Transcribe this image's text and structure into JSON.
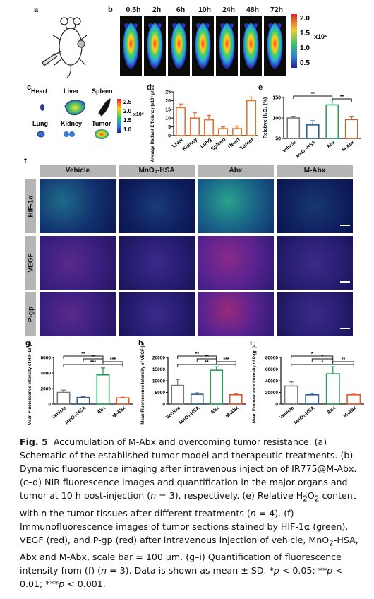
{
  "panels": {
    "a": "a",
    "b": "b",
    "c": "c",
    "d": "d",
    "e": "e",
    "f": "f",
    "g": "g",
    "h": "h",
    "i": "i"
  },
  "panel_b": {
    "timepoints": [
      "0.5h",
      "2h",
      "6h",
      "10h",
      "24h",
      "48h",
      "72h"
    ],
    "colorbar": {
      "ticks": [
        "2.0",
        "1.5",
        "1.0",
        "0.5"
      ],
      "unit": "x10⁹"
    }
  },
  "panel_c": {
    "organs": [
      "Heart",
      "Liver",
      "Spleen",
      "Lung",
      "Kidney",
      "Tumor"
    ],
    "colorbar": {
      "ticks": [
        "2.5",
        "2.0",
        "1.5",
        "1.0"
      ],
      "unit": "x10⁹"
    }
  },
  "panel_f": {
    "columns": [
      "Vehicle",
      "MnO₂-HSA",
      "Abx",
      "M-Abx"
    ],
    "rows": [
      "HIF-1α",
      "VEGF",
      "P-gp"
    ]
  },
  "colors": {
    "vehicle": "#777777",
    "mno2": "#2f5f8a",
    "abx": "#2a9d5c",
    "mabx": "#d95b2a",
    "organ_bar": "#e8742c"
  },
  "chart_data": [
    {
      "id": "d",
      "type": "bar",
      "ylabel": "Average Radiant Efficiency (x10⁹ p/s/cm²/sr/μW)",
      "categories": [
        "Liver",
        "Kidney",
        "Lung",
        "Spleen",
        "Heart",
        "Tumor"
      ],
      "values": [
        16,
        10,
        9,
        4,
        4,
        20
      ],
      "errors": [
        2,
        3,
        2.5,
        1,
        1.5,
        2
      ],
      "ylim": [
        0,
        25
      ],
      "yticks": [
        "0",
        "5",
        "10",
        "15",
        "20",
        "25"
      ]
    },
    {
      "id": "e",
      "type": "bar",
      "ylabel": "Relative H₂O₂ (%)",
      "categories": [
        "Vehicle",
        "MnO₂-HSA",
        "Abx",
        "M-Abx"
      ],
      "values": [
        100,
        83,
        132,
        96
      ],
      "errors": [
        4,
        10,
        12,
        8
      ],
      "ylim": [
        50,
        150
      ],
      "yticks": [
        "50",
        "100",
        "150"
      ],
      "sig": [
        {
          "from": 0,
          "to": 2,
          "label": "**"
        },
        {
          "from": 2,
          "to": 3,
          "label": "**"
        }
      ]
    },
    {
      "id": "g",
      "type": "bar",
      "ylabel": "Mean Fluorescence Intensity of HIF-1α (a.u.)",
      "categories": [
        "Vehicle",
        "MnO₂-HSA",
        "Abx",
        "M-Abx"
      ],
      "values": [
        1500,
        850,
        3750,
        800
      ],
      "errors": [
        300,
        80,
        900,
        70
      ],
      "ylim": [
        0,
        6000
      ],
      "yticks": [
        "0",
        "2000",
        "4000",
        "6000"
      ],
      "sig": [
        {
          "from": 0,
          "to": 2,
          "label": "**"
        },
        {
          "from": 1,
          "to": 2,
          "label": "**"
        },
        {
          "from": 2,
          "to": 3,
          "label": "***"
        },
        {
          "from": 0,
          "to": 3,
          "label": "***"
        }
      ]
    },
    {
      "id": "h",
      "type": "bar",
      "ylabel": "Mean Fluorescence Intensity of VEGF (a.u.)",
      "categories": [
        "Vehicle",
        "MnO₂-HSA",
        "Abx",
        "M-Abx"
      ],
      "values": [
        8000,
        4200,
        14500,
        4000
      ],
      "errors": [
        2500,
        600,
        1500,
        300
      ],
      "ylim": [
        0,
        20000
      ],
      "yticks": [
        "0",
        "5000",
        "10000",
        "15000",
        "20000"
      ],
      "sig": [
        {
          "from": 0,
          "to": 2,
          "label": "**"
        },
        {
          "from": 1,
          "to": 2,
          "label": "**"
        },
        {
          "from": 2,
          "to": 3,
          "label": "***"
        },
        {
          "from": 0,
          "to": 3,
          "label": "**"
        }
      ]
    },
    {
      "id": "i",
      "type": "bar",
      "ylabel": "Mean Fluorescence Intensity of P-gp (a.u.)",
      "categories": [
        "Vehicle",
        "MnO₂-HSA",
        "Abx",
        "M-Abx"
      ],
      "values": [
        31000,
        16000,
        52000,
        16000
      ],
      "errors": [
        7000,
        2500,
        12000,
        2500
      ],
      "ylim": [
        0,
        80000
      ],
      "yticks": [
        "0",
        "20000",
        "40000",
        "60000",
        "80000"
      ],
      "sig": [
        {
          "from": 0,
          "to": 2,
          "label": "*"
        },
        {
          "from": 1,
          "to": 2,
          "label": "*"
        },
        {
          "from": 2,
          "to": 3,
          "label": "**"
        },
        {
          "from": 0,
          "to": 3,
          "label": "*"
        }
      ]
    }
  ],
  "caption": {
    "fig": "Fig. 5",
    "title": "Accumulation of M-Abx and overcoming tumor resistance.",
    "a": " (a) Schematic of the established tumor model and therapeutic treatments.",
    "b": " (b) Dynamic fluorescence imaging after intravenous injection of IR775@M-Abx.",
    "c": " (c–d) NIR fluorescence images and quantification in the major organs and tumor at 10 h post-injection (",
    "c_n": "n",
    "c_tail": " = 3), respectively.",
    "e_pre": " (e) Relative H",
    "e_mid": "O",
    "e_tail": " content within the tumor tissues after different treatments (",
    "e_n": "n",
    "e_end": " = 4).",
    "f_pre": " (f) Immunofluorescence images of tumor sections stained by HIF-1α (green), VEGF (red), and P-gp (red) after intravenous injection of vehicle, MnO",
    "f_mid": "-HSA, Abx and M-Abx, scale bar = 100 μm.",
    "g_pre": " (g–i) Quantification of fluorescence intensity from (f) (",
    "g_n": "n",
    "g_tail": " = 3). Data is shown as mean ± SD. *",
    "p1": "p",
    "s1": " < 0.05; **",
    "p2": "p",
    "s2": " < 0.01; ***",
    "p3": "p",
    "s3": " < 0.001."
  }
}
